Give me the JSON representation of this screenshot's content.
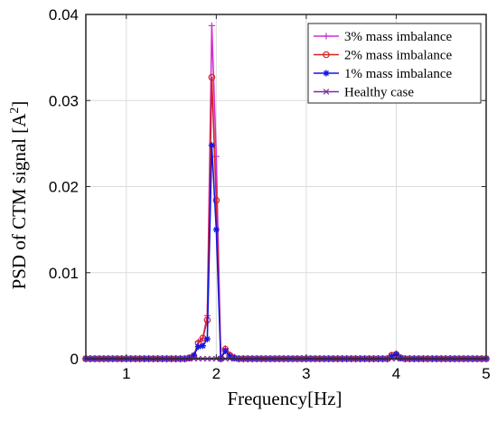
{
  "chart_data": {
    "type": "line",
    "xlabel": "Frequency[Hz]",
    "ylabel_main": "PSD of CTM signal [A",
    "ylabel_sup": "2",
    "ylabel_end": "]",
    "xlim": [
      0.55,
      5
    ],
    "ylim": [
      0,
      0.04
    ],
    "xticks": [
      1,
      2,
      3,
      4,
      5
    ],
    "xtick_labels": [
      "1",
      "2",
      "3",
      "4",
      "5"
    ],
    "yticks": [
      0,
      0.01,
      0.02,
      0.03,
      0.04
    ],
    "ytick_labels": [
      "0",
      "0.01",
      "0.02",
      "0.03",
      "0.04"
    ],
    "grid": true,
    "legend_position": "top-right",
    "x": [
      0.55,
      0.6,
      0.65,
      0.7,
      0.75,
      0.8,
      0.85,
      0.9,
      0.95,
      1.0,
      1.05,
      1.1,
      1.15,
      1.2,
      1.25,
      1.3,
      1.35,
      1.4,
      1.45,
      1.5,
      1.55,
      1.6,
      1.65,
      1.7,
      1.75,
      1.8,
      1.85,
      1.9,
      1.95,
      2.0,
      2.05,
      2.1,
      2.15,
      2.2,
      2.25,
      2.3,
      2.35,
      2.4,
      2.45,
      2.5,
      2.55,
      2.6,
      2.65,
      2.7,
      2.75,
      2.8,
      2.85,
      2.9,
      2.95,
      3.0,
      3.05,
      3.1,
      3.15,
      3.2,
      3.25,
      3.3,
      3.35,
      3.4,
      3.45,
      3.5,
      3.55,
      3.6,
      3.65,
      3.7,
      3.75,
      3.8,
      3.85,
      3.9,
      3.95,
      4.0,
      4.05,
      4.1,
      4.15,
      4.2,
      4.25,
      4.3,
      4.35,
      4.4,
      4.45,
      4.5,
      4.55,
      4.6,
      4.65,
      4.7,
      4.75,
      4.8,
      4.85,
      4.9,
      4.95,
      5.0
    ],
    "series": [
      {
        "name": "3% mass imbalance",
        "color": "#d12fd1",
        "marker": "plus",
        "values": [
          0,
          0,
          0,
          0,
          0,
          0,
          0,
          0,
          0,
          0,
          0,
          0,
          0,
          0,
          0,
          0,
          0,
          0,
          0,
          0,
          0,
          0,
          0,
          0.0001,
          0.0003,
          0.002,
          0.0024,
          0.005,
          0.0387,
          0.0235,
          0,
          0.0012,
          0.0005,
          0.0002,
          0,
          0,
          0,
          0,
          0,
          0,
          0,
          0,
          0,
          0,
          0,
          0,
          0,
          0,
          0,
          0,
          0,
          0,
          0,
          0,
          0,
          0,
          0,
          0,
          0,
          0,
          0,
          0,
          0,
          0,
          0,
          0,
          0,
          0,
          0.0004,
          0.0006,
          0.0001,
          0,
          0,
          0,
          0,
          0,
          0,
          0,
          0,
          0,
          0,
          0,
          0,
          0,
          0,
          0,
          0,
          0,
          0,
          0
        ]
      },
      {
        "name": "2% mass imbalance",
        "color": "#d0261c",
        "marker": "circle",
        "values": [
          0,
          0,
          0,
          0,
          0,
          0,
          0,
          0,
          0,
          0,
          0,
          0,
          0,
          0,
          0,
          0,
          0,
          0,
          0,
          0,
          0,
          0,
          0,
          0.0001,
          0.0003,
          0.0018,
          0.0024,
          0.0045,
          0.0327,
          0.0184,
          0,
          0.0011,
          0.0004,
          0.0001,
          0,
          0,
          0,
          0,
          0,
          0,
          0,
          0,
          0,
          0,
          0,
          0,
          0,
          0,
          0,
          0,
          0,
          0,
          0,
          0,
          0,
          0,
          0,
          0,
          0,
          0,
          0,
          0,
          0,
          0,
          0,
          0,
          0,
          0,
          0.0004,
          0.0005,
          0.0001,
          0,
          0,
          0,
          0,
          0,
          0,
          0,
          0,
          0,
          0,
          0,
          0,
          0,
          0,
          0,
          0,
          0,
          0,
          0
        ]
      },
      {
        "name": "1% mass imbalance",
        "color": "#1515e0",
        "marker": "asterisk",
        "values": [
          0,
          0,
          0,
          0,
          0,
          0,
          0,
          0,
          0,
          0,
          0,
          0,
          0,
          0,
          0,
          0,
          0,
          0,
          0,
          0,
          0,
          0,
          0,
          0.0001,
          0.0004,
          0.0014,
          0.0015,
          0.0023,
          0.0248,
          0.015,
          0,
          0.0009,
          0.0003,
          0.0001,
          0,
          0,
          0,
          0,
          0,
          0,
          0,
          0,
          0,
          0,
          0,
          0,
          0,
          0,
          0,
          0,
          0,
          0,
          0,
          0,
          0,
          0,
          0,
          0,
          0,
          0,
          0,
          0,
          0,
          0,
          0,
          0,
          0,
          0,
          0.0003,
          0.0005,
          0.0001,
          0,
          0,
          0,
          0,
          0,
          0,
          0,
          0,
          0,
          0,
          0,
          0,
          0,
          0,
          0,
          0,
          0,
          0,
          0
        ]
      },
      {
        "name": "Healthy case",
        "color": "#7a2ba0",
        "marker": "x",
        "values": [
          0,
          0,
          0,
          0,
          0,
          0,
          0,
          0,
          0,
          0,
          0,
          0,
          0,
          0,
          0,
          0,
          0,
          0,
          0,
          0,
          0,
          0,
          0,
          0,
          0,
          0,
          0,
          0,
          0,
          0,
          0,
          0,
          0,
          0,
          0,
          0,
          0,
          0,
          0,
          0,
          0,
          0,
          0,
          0,
          0,
          0,
          0,
          0,
          0,
          0,
          0,
          0,
          0,
          0,
          0,
          0,
          0,
          0,
          0,
          0,
          0,
          0,
          0,
          0,
          0,
          0,
          0,
          0,
          0,
          0,
          0,
          0,
          0,
          0,
          0,
          0,
          0,
          0,
          0,
          0,
          0,
          0,
          0,
          0,
          0,
          0,
          0,
          0,
          0,
          0
        ]
      }
    ]
  }
}
